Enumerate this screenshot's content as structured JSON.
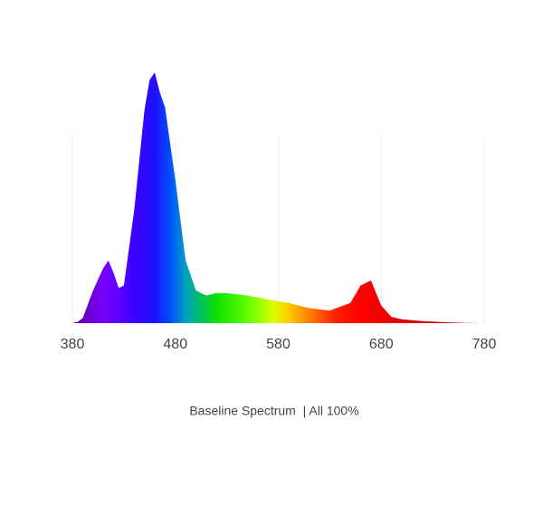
{
  "chart_data": {
    "type": "area",
    "caption": "Baseline Spectrum  | All 100%",
    "x": [
      380,
      385,
      390,
      400,
      410,
      415,
      420,
      425,
      430,
      440,
      450,
      455,
      460,
      465,
      470,
      480,
      490,
      500,
      510,
      520,
      530,
      550,
      570,
      590,
      610,
      630,
      650,
      660,
      670,
      680,
      690,
      700,
      720,
      740,
      760,
      780
    ],
    "values": [
      0,
      0.005,
      0.02,
      0.13,
      0.22,
      0.25,
      0.2,
      0.14,
      0.15,
      0.45,
      0.85,
      0.97,
      1.0,
      0.92,
      0.86,
      0.57,
      0.25,
      0.13,
      0.11,
      0.12,
      0.12,
      0.11,
      0.095,
      0.08,
      0.06,
      0.05,
      0.08,
      0.15,
      0.17,
      0.07,
      0.025,
      0.015,
      0.008,
      0.004,
      0.001,
      0
    ],
    "xlim": [
      380,
      780
    ],
    "ylim": [
      0,
      1
    ],
    "xticks": [
      380,
      480,
      580,
      680,
      780
    ],
    "grid": true
  }
}
